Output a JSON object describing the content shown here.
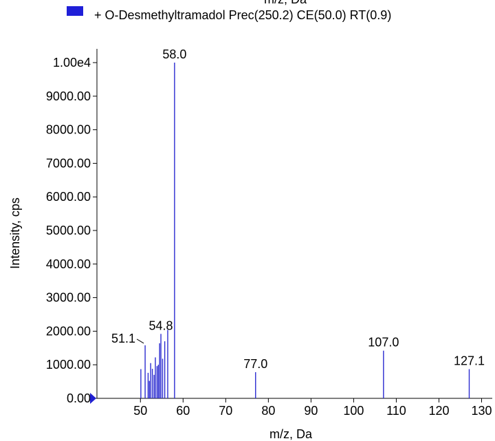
{
  "chart_data": {
    "type": "bar",
    "top_cut_label": "m/z, Da",
    "legend_text": "+ O-Desmethyltramadol Prec(250.2) CE(50.0) RT(0.9)",
    "legend_color": "#1f1fd8",
    "bar_color": "#2a2ad0",
    "xlabel": "m/z, Da",
    "ylabel": "Intensity, cps",
    "xlim": [
      39.8,
      132.5
    ],
    "ylim": [
      0,
      10000
    ],
    "x_ticks": [
      50,
      60,
      70,
      80,
      90,
      100,
      110,
      120,
      130
    ],
    "x_tick_labels": [
      "50",
      "60",
      "70",
      "80",
      "90",
      "100",
      "110",
      "120",
      "130"
    ],
    "y_ticks": [
      0,
      1000,
      2000,
      3000,
      4000,
      5000,
      6000,
      7000,
      8000,
      9000,
      10000
    ],
    "y_tick_labels": [
      "0.00",
      "1000.00",
      "2000.00",
      "3000.00",
      "4000.00",
      "5000.00",
      "6000.00",
      "7000.00",
      "8000.00",
      "9000.00",
      "1.00e4"
    ],
    "peaks": [
      {
        "mz": 50.1,
        "intensity": 870
      },
      {
        "mz": 51.1,
        "intensity": 1580
      },
      {
        "mz": 51.8,
        "intensity": 760
      },
      {
        "mz": 52.1,
        "intensity": 520
      },
      {
        "mz": 52.4,
        "intensity": 1050
      },
      {
        "mz": 52.8,
        "intensity": 880
      },
      {
        "mz": 53.2,
        "intensity": 700
      },
      {
        "mz": 53.5,
        "intensity": 1220
      },
      {
        "mz": 53.9,
        "intensity": 960
      },
      {
        "mz": 54.2,
        "intensity": 1000
      },
      {
        "mz": 54.5,
        "intensity": 1640
      },
      {
        "mz": 54.8,
        "intensity": 1920
      },
      {
        "mz": 55.2,
        "intensity": 1180
      },
      {
        "mz": 55.7,
        "intensity": 1700
      },
      {
        "mz": 56.4,
        "intensity": 2040
      },
      {
        "mz": 58.0,
        "intensity": 10000
      },
      {
        "mz": 77.0,
        "intensity": 780
      },
      {
        "mz": 107.0,
        "intensity": 1420
      },
      {
        "mz": 127.1,
        "intensity": 870
      }
    ],
    "peak_labels": [
      {
        "text": "58.0",
        "mz": 58.0,
        "intensity": 10000
      },
      {
        "text": "54.8",
        "mz": 54.8,
        "intensity": 1920
      },
      {
        "text": "51.1",
        "mz": 51.1,
        "intensity": 1580
      },
      {
        "text": "77.0",
        "mz": 77.0,
        "intensity": 780
      },
      {
        "text": "107.0",
        "mz": 107.0,
        "intensity": 1420
      },
      {
        "text": "127.1",
        "mz": 127.1,
        "intensity": 870
      }
    ],
    "grid": false,
    "legend_position": "top-left"
  }
}
